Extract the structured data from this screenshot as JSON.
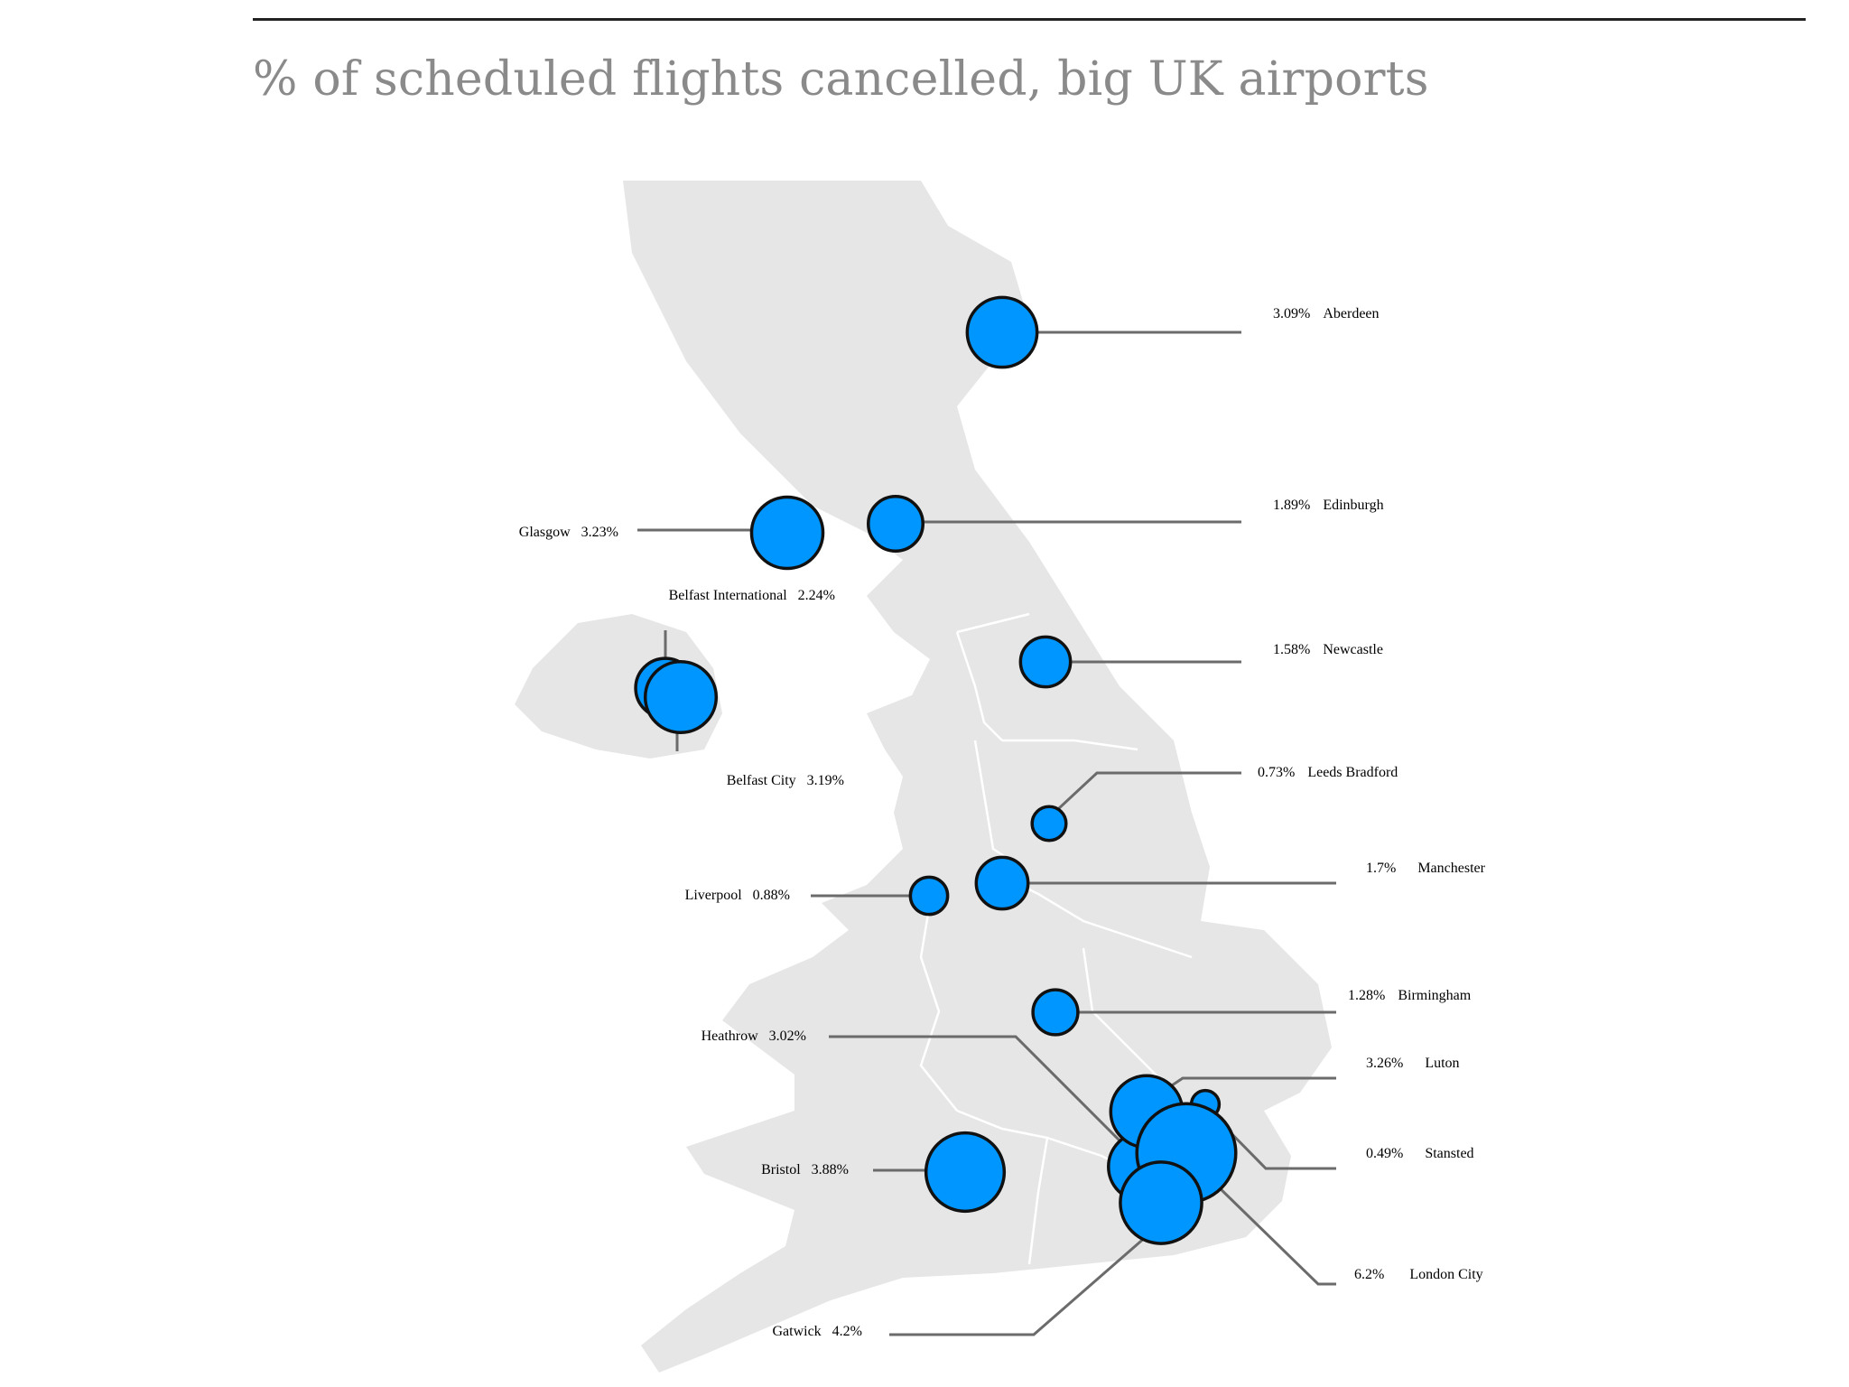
{
  "title": "% of scheduled flights cancelled, big UK airports",
  "colors": {
    "bubble": "#0096ff",
    "pct_text": "#1a97f0",
    "land": "#e6e6e6",
    "leader": "#6b6b6b"
  },
  "airports": [
    {
      "name": "Aberdeen",
      "pct": "3.09%",
      "value": 3.09
    },
    {
      "name": "Edinburgh",
      "pct": "1.89%",
      "value": 1.89
    },
    {
      "name": "Glasgow",
      "pct": "3.23%",
      "value": 3.23
    },
    {
      "name": "Belfast International",
      "pct": "2.24%",
      "value": 2.24
    },
    {
      "name": "Newcastle",
      "pct": "1.58%",
      "value": 1.58
    },
    {
      "name": "Belfast City",
      "pct": "3.19%",
      "value": 3.19
    },
    {
      "name": "Leeds Bradford",
      "pct": "0.73%",
      "value": 0.73
    },
    {
      "name": "Manchester",
      "pct": "1.7%",
      "value": 1.7
    },
    {
      "name": "Liverpool",
      "pct": "0.88%",
      "value": 0.88
    },
    {
      "name": "Birmingham",
      "pct": "1.28%",
      "value": 1.28
    },
    {
      "name": "Heathrow",
      "pct": "3.02%",
      "value": 3.02
    },
    {
      "name": "Luton",
      "pct": "3.26%",
      "value": 3.26
    },
    {
      "name": "Stansted",
      "pct": "0.49%",
      "value": 0.49
    },
    {
      "name": "Bristol",
      "pct": "3.88%",
      "value": 3.88
    },
    {
      "name": "London City",
      "pct": "6.2%",
      "value": 6.2
    },
    {
      "name": "Gatwick",
      "pct": "4.2%",
      "value": 4.2
    }
  ]
}
